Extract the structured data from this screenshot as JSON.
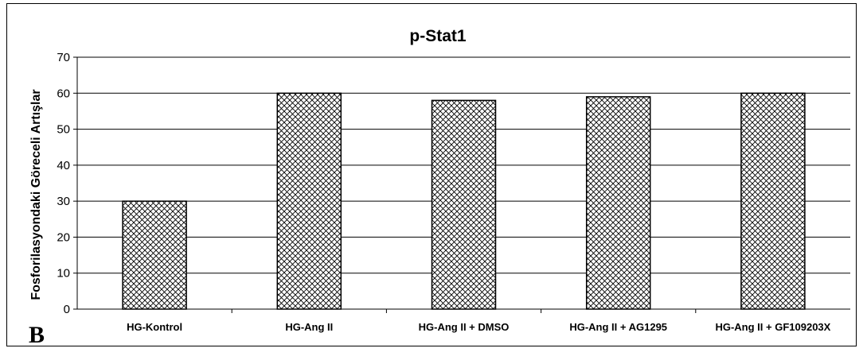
{
  "panel_label": "B",
  "chart_data": {
    "type": "bar",
    "title": "p-Stat1",
    "xlabel": "",
    "ylabel": "Fosforilasyondaki Göreceli Artışlar",
    "categories": [
      "HG-Kontrol",
      "HG-Ang II",
      "HG-Ang II + DMSO",
      "HG-Ang II + AG1295",
      "HG-Ang II + GF109203X"
    ],
    "values": [
      30,
      60,
      58,
      59,
      60
    ],
    "ylim": [
      0,
      70
    ],
    "yticks": [
      0,
      10,
      20,
      30,
      40,
      50,
      60,
      70
    ],
    "grid": true,
    "legend": "none",
    "bar_fill": "crosshatch",
    "bar_stroke_color": "#000000",
    "gridline_color": "#000000"
  }
}
